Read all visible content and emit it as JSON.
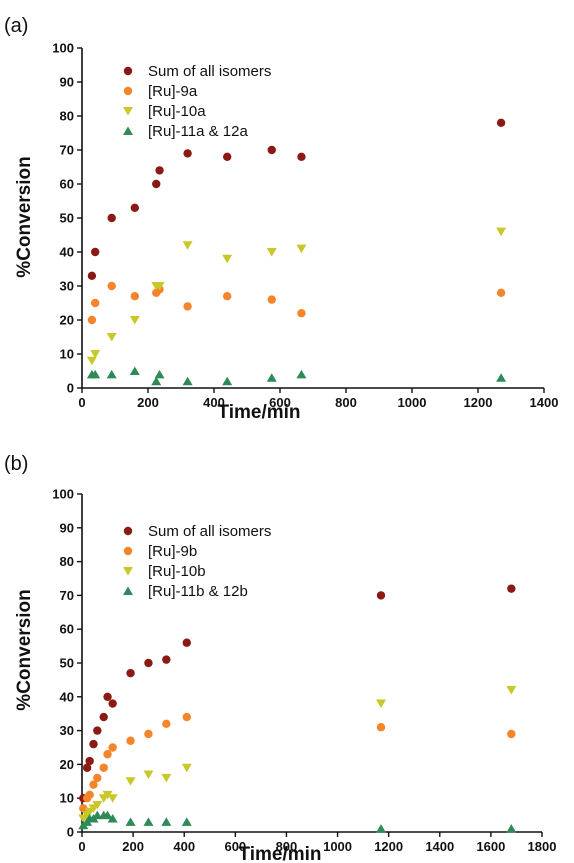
{
  "colors": {
    "sum": "#8b1a14",
    "iso9": "#f5842a",
    "iso10": "#c9c72a",
    "iso11": "#2e8b57"
  },
  "chart_data": [
    {
      "panel_label": "(a)",
      "type": "scatter",
      "xlabel": "Time/min",
      "ylabel": "%Conversion",
      "xlim": [
        0,
        1400
      ],
      "ylim": [
        0,
        100
      ],
      "xticks": [
        "0",
        "200",
        "400",
        "600",
        "800",
        "1000",
        "1200",
        "1400"
      ],
      "yticks": [
        "0",
        "10",
        "20",
        "30",
        "40",
        "50",
        "60",
        "70",
        "80",
        "90",
        "100"
      ],
      "legend_position": "top-left",
      "series": [
        {
          "name": "Sum of all isomers",
          "marker": "circle",
          "color": "#8b1a14",
          "points": [
            [
              30,
              33
            ],
            [
              40,
              40
            ],
            [
              90,
              50
            ],
            [
              160,
              53
            ],
            [
              225,
              60
            ],
            [
              235,
              64
            ],
            [
              320,
              69
            ],
            [
              440,
              68
            ],
            [
              575,
              70
            ],
            [
              665,
              68
            ],
            [
              1270,
              78
            ]
          ]
        },
        {
          "name": "[Ru]-9a",
          "marker": "circle",
          "color": "#f5842a",
          "points": [
            [
              30,
              20
            ],
            [
              40,
              25
            ],
            [
              90,
              30
            ],
            [
              160,
              27
            ],
            [
              225,
              28
            ],
            [
              235,
              29
            ],
            [
              320,
              24
            ],
            [
              440,
              27
            ],
            [
              575,
              26
            ],
            [
              665,
              22
            ],
            [
              1270,
              28
            ]
          ]
        },
        {
          "name": "[Ru]-10a",
          "marker": "triangle-down",
          "color": "#c9c72a",
          "points": [
            [
              30,
              8
            ],
            [
              40,
              10
            ],
            [
              90,
              15
            ],
            [
              160,
              20
            ],
            [
              225,
              30
            ],
            [
              235,
              30
            ],
            [
              320,
              42
            ],
            [
              440,
              38
            ],
            [
              575,
              40
            ],
            [
              665,
              41
            ],
            [
              1270,
              46
            ]
          ]
        },
        {
          "name": "[Ru]-11a & 12a",
          "marker": "triangle-up",
          "color": "#2e8b57",
          "points": [
            [
              30,
              4
            ],
            [
              40,
              4
            ],
            [
              90,
              4
            ],
            [
              160,
              5
            ],
            [
              225,
              2
            ],
            [
              235,
              4
            ],
            [
              320,
              2
            ],
            [
              440,
              2
            ],
            [
              575,
              3
            ],
            [
              665,
              4
            ],
            [
              1270,
              3
            ]
          ]
        }
      ]
    },
    {
      "panel_label": "(b)",
      "type": "scatter",
      "xlabel": "Time/min",
      "ylabel": "%Conversion",
      "xlim": [
        0,
        1800
      ],
      "ylim": [
        0,
        100
      ],
      "xticks": [
        "0",
        "200",
        "400",
        "600",
        "800",
        "1000",
        "1200",
        "1400",
        "1600",
        "1800"
      ],
      "yticks": [
        "0",
        "10",
        "20",
        "30",
        "40",
        "50",
        "60",
        "70",
        "80",
        "90",
        "100"
      ],
      "legend_position": "top-left",
      "series": [
        {
          "name": "Sum of all isomers",
          "marker": "circle",
          "color": "#8b1a14",
          "points": [
            [
              5,
              10
            ],
            [
              20,
              19
            ],
            [
              30,
              21
            ],
            [
              45,
              26
            ],
            [
              60,
              30
            ],
            [
              85,
              34
            ],
            [
              100,
              40
            ],
            [
              120,
              38
            ],
            [
              190,
              47
            ],
            [
              260,
              50
            ],
            [
              330,
              51
            ],
            [
              410,
              56
            ],
            [
              1170,
              70
            ],
            [
              1680,
              72
            ]
          ]
        },
        {
          "name": "[Ru]-9b",
          "marker": "circle",
          "color": "#f5842a",
          "points": [
            [
              5,
              7
            ],
            [
              20,
              10
            ],
            [
              30,
              11
            ],
            [
              45,
              14
            ],
            [
              60,
              16
            ],
            [
              85,
              19
            ],
            [
              100,
              23
            ],
            [
              120,
              25
            ],
            [
              190,
              27
            ],
            [
              260,
              29
            ],
            [
              330,
              32
            ],
            [
              410,
              34
            ],
            [
              1170,
              31
            ],
            [
              1680,
              29
            ]
          ]
        },
        {
          "name": "[Ru]-10b",
          "marker": "triangle-down",
          "color": "#c9c72a",
          "points": [
            [
              5,
              4
            ],
            [
              20,
              5
            ],
            [
              30,
              6
            ],
            [
              45,
              7
            ],
            [
              60,
              8
            ],
            [
              85,
              10
            ],
            [
              100,
              11
            ],
            [
              120,
              10
            ],
            [
              190,
              15
            ],
            [
              260,
              17
            ],
            [
              330,
              16
            ],
            [
              410,
              19
            ],
            [
              1170,
              38
            ],
            [
              1680,
              42
            ]
          ]
        },
        {
          "name": "[Ru]-11b & 12b",
          "marker": "triangle-up",
          "color": "#2e8b57",
          "points": [
            [
              5,
              2
            ],
            [
              20,
              3
            ],
            [
              30,
              4
            ],
            [
              45,
              4
            ],
            [
              60,
              5
            ],
            [
              85,
              5
            ],
            [
              100,
              5
            ],
            [
              120,
              4
            ],
            [
              190,
              3
            ],
            [
              260,
              3
            ],
            [
              330,
              3
            ],
            [
              410,
              3
            ],
            [
              1170,
              1
            ],
            [
              1680,
              1
            ]
          ]
        }
      ]
    }
  ]
}
